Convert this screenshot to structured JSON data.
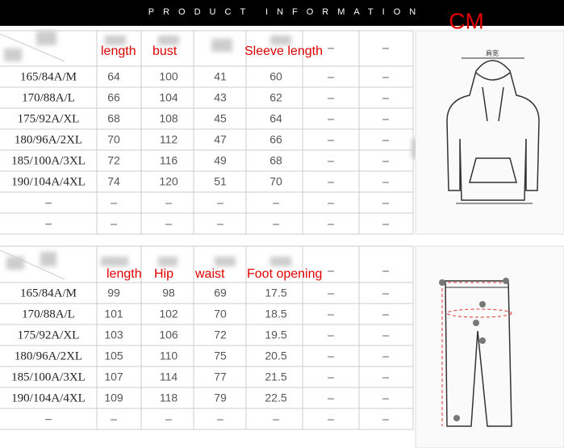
{
  "header": {
    "title": "PRODUCT INFORMATION",
    "unit": "CM"
  },
  "tables": [
    {
      "headers": [
        "length",
        "bust",
        "Sleeve length",
        "–",
        "–"
      ],
      "rows": [
        [
          "165/84A/M",
          64,
          100,
          41,
          60,
          "–",
          "–"
        ],
        [
          "170/88A/L",
          66,
          104,
          43,
          62,
          "–",
          "–"
        ],
        [
          "175/92A/XL",
          68,
          108,
          45,
          64,
          "–",
          "–"
        ],
        [
          "180/96A/2XL",
          70,
          112,
          47,
          66,
          "–",
          "–"
        ],
        [
          "185/100A/3XL",
          72,
          116,
          49,
          68,
          "–",
          "–"
        ],
        [
          "190/104A/4XL",
          74,
          120,
          51,
          70,
          "–",
          "–"
        ],
        [
          "–",
          "–",
          "–",
          "–",
          "–",
          "–",
          "–"
        ],
        [
          "–",
          "–",
          "–",
          "–",
          "–",
          "–",
          "–"
        ]
      ]
    },
    {
      "headers": [
        "length",
        "Hip",
        "waist",
        "Foot opening",
        "–",
        "–"
      ],
      "rows": [
        [
          "165/84A/M",
          99,
          98,
          69,
          17.5,
          "–",
          "–"
        ],
        [
          "170/88A/L",
          101,
          102,
          70,
          18.5,
          "–",
          "–"
        ],
        [
          "175/92A/XL",
          103,
          106,
          72,
          19.5,
          "–",
          "–"
        ],
        [
          "180/96A/2XL",
          105,
          110,
          75,
          20.5,
          "–",
          "–"
        ],
        [
          "185/100A/3XL",
          107,
          114,
          77,
          21.5,
          "–",
          "–"
        ],
        [
          "190/104A/4XL",
          109,
          118,
          79,
          22.5,
          "–",
          "–"
        ],
        [
          "–",
          "–",
          "–",
          "–",
          "–",
          "–",
          "–"
        ]
      ]
    }
  ],
  "hoodie_label": "肩宽"
}
